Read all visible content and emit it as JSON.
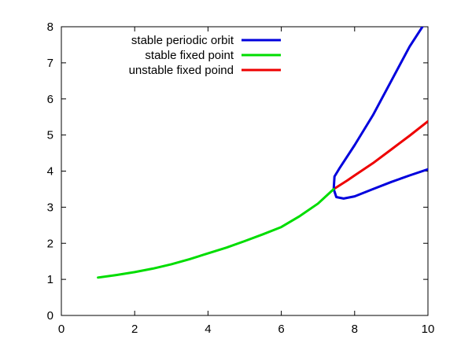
{
  "chart_data": {
    "type": "line",
    "title": "",
    "xlabel": "",
    "ylabel": "",
    "xlim": [
      0,
      10
    ],
    "ylim": [
      0,
      8
    ],
    "x_ticks": [
      0,
      2,
      4,
      6,
      8,
      10
    ],
    "y_ticks": [
      0,
      1,
      2,
      3,
      4,
      5,
      6,
      7,
      8
    ],
    "x_tick_labels": [
      "0",
      "2",
      "4",
      "6",
      "8",
      "10"
    ],
    "y_tick_labels": [
      "0",
      "1",
      "2",
      "3",
      "4",
      "5",
      "6",
      "7",
      "8"
    ],
    "grid": false,
    "legend_position": "top-left",
    "series": [
      {
        "name": "stable periodic orbit",
        "color": "#0000dd",
        "branches": [
          [
            [
              7.43,
              3.5
            ],
            [
              7.45,
              3.85
            ],
            [
              7.6,
              4.1
            ],
            [
              8.0,
              4.72
            ],
            [
              8.5,
              5.55
            ],
            [
              9.0,
              6.5
            ],
            [
              9.5,
              7.45
            ],
            [
              9.85,
              8.0
            ]
          ],
          [
            [
              7.43,
              3.5
            ],
            [
              7.5,
              3.28
            ],
            [
              7.7,
              3.24
            ],
            [
              8.0,
              3.3
            ],
            [
              8.5,
              3.5
            ],
            [
              9.0,
              3.7
            ],
            [
              9.5,
              3.88
            ],
            [
              10.0,
              4.05
            ]
          ]
        ]
      },
      {
        "name": "stable fixed point",
        "color": "#00dd00",
        "branches": [
          [
            [
              1.0,
              1.05
            ],
            [
              1.5,
              1.12
            ],
            [
              2.0,
              1.2
            ],
            [
              2.5,
              1.3
            ],
            [
              3.0,
              1.42
            ],
            [
              3.5,
              1.56
            ],
            [
              4.0,
              1.72
            ],
            [
              4.5,
              1.88
            ],
            [
              5.0,
              2.06
            ],
            [
              5.5,
              2.25
            ],
            [
              6.0,
              2.45
            ],
            [
              6.5,
              2.75
            ],
            [
              7.0,
              3.1
            ],
            [
              7.43,
              3.5
            ]
          ]
        ]
      },
      {
        "name": "unstable fixed poind",
        "color": "#ee0000",
        "branches": [
          [
            [
              7.43,
              3.5
            ],
            [
              7.8,
              3.74
            ],
            [
              8.0,
              3.88
            ],
            [
              8.5,
              4.22
            ],
            [
              9.0,
              4.6
            ],
            [
              9.5,
              4.98
            ],
            [
              10.0,
              5.38
            ]
          ]
        ]
      }
    ]
  }
}
